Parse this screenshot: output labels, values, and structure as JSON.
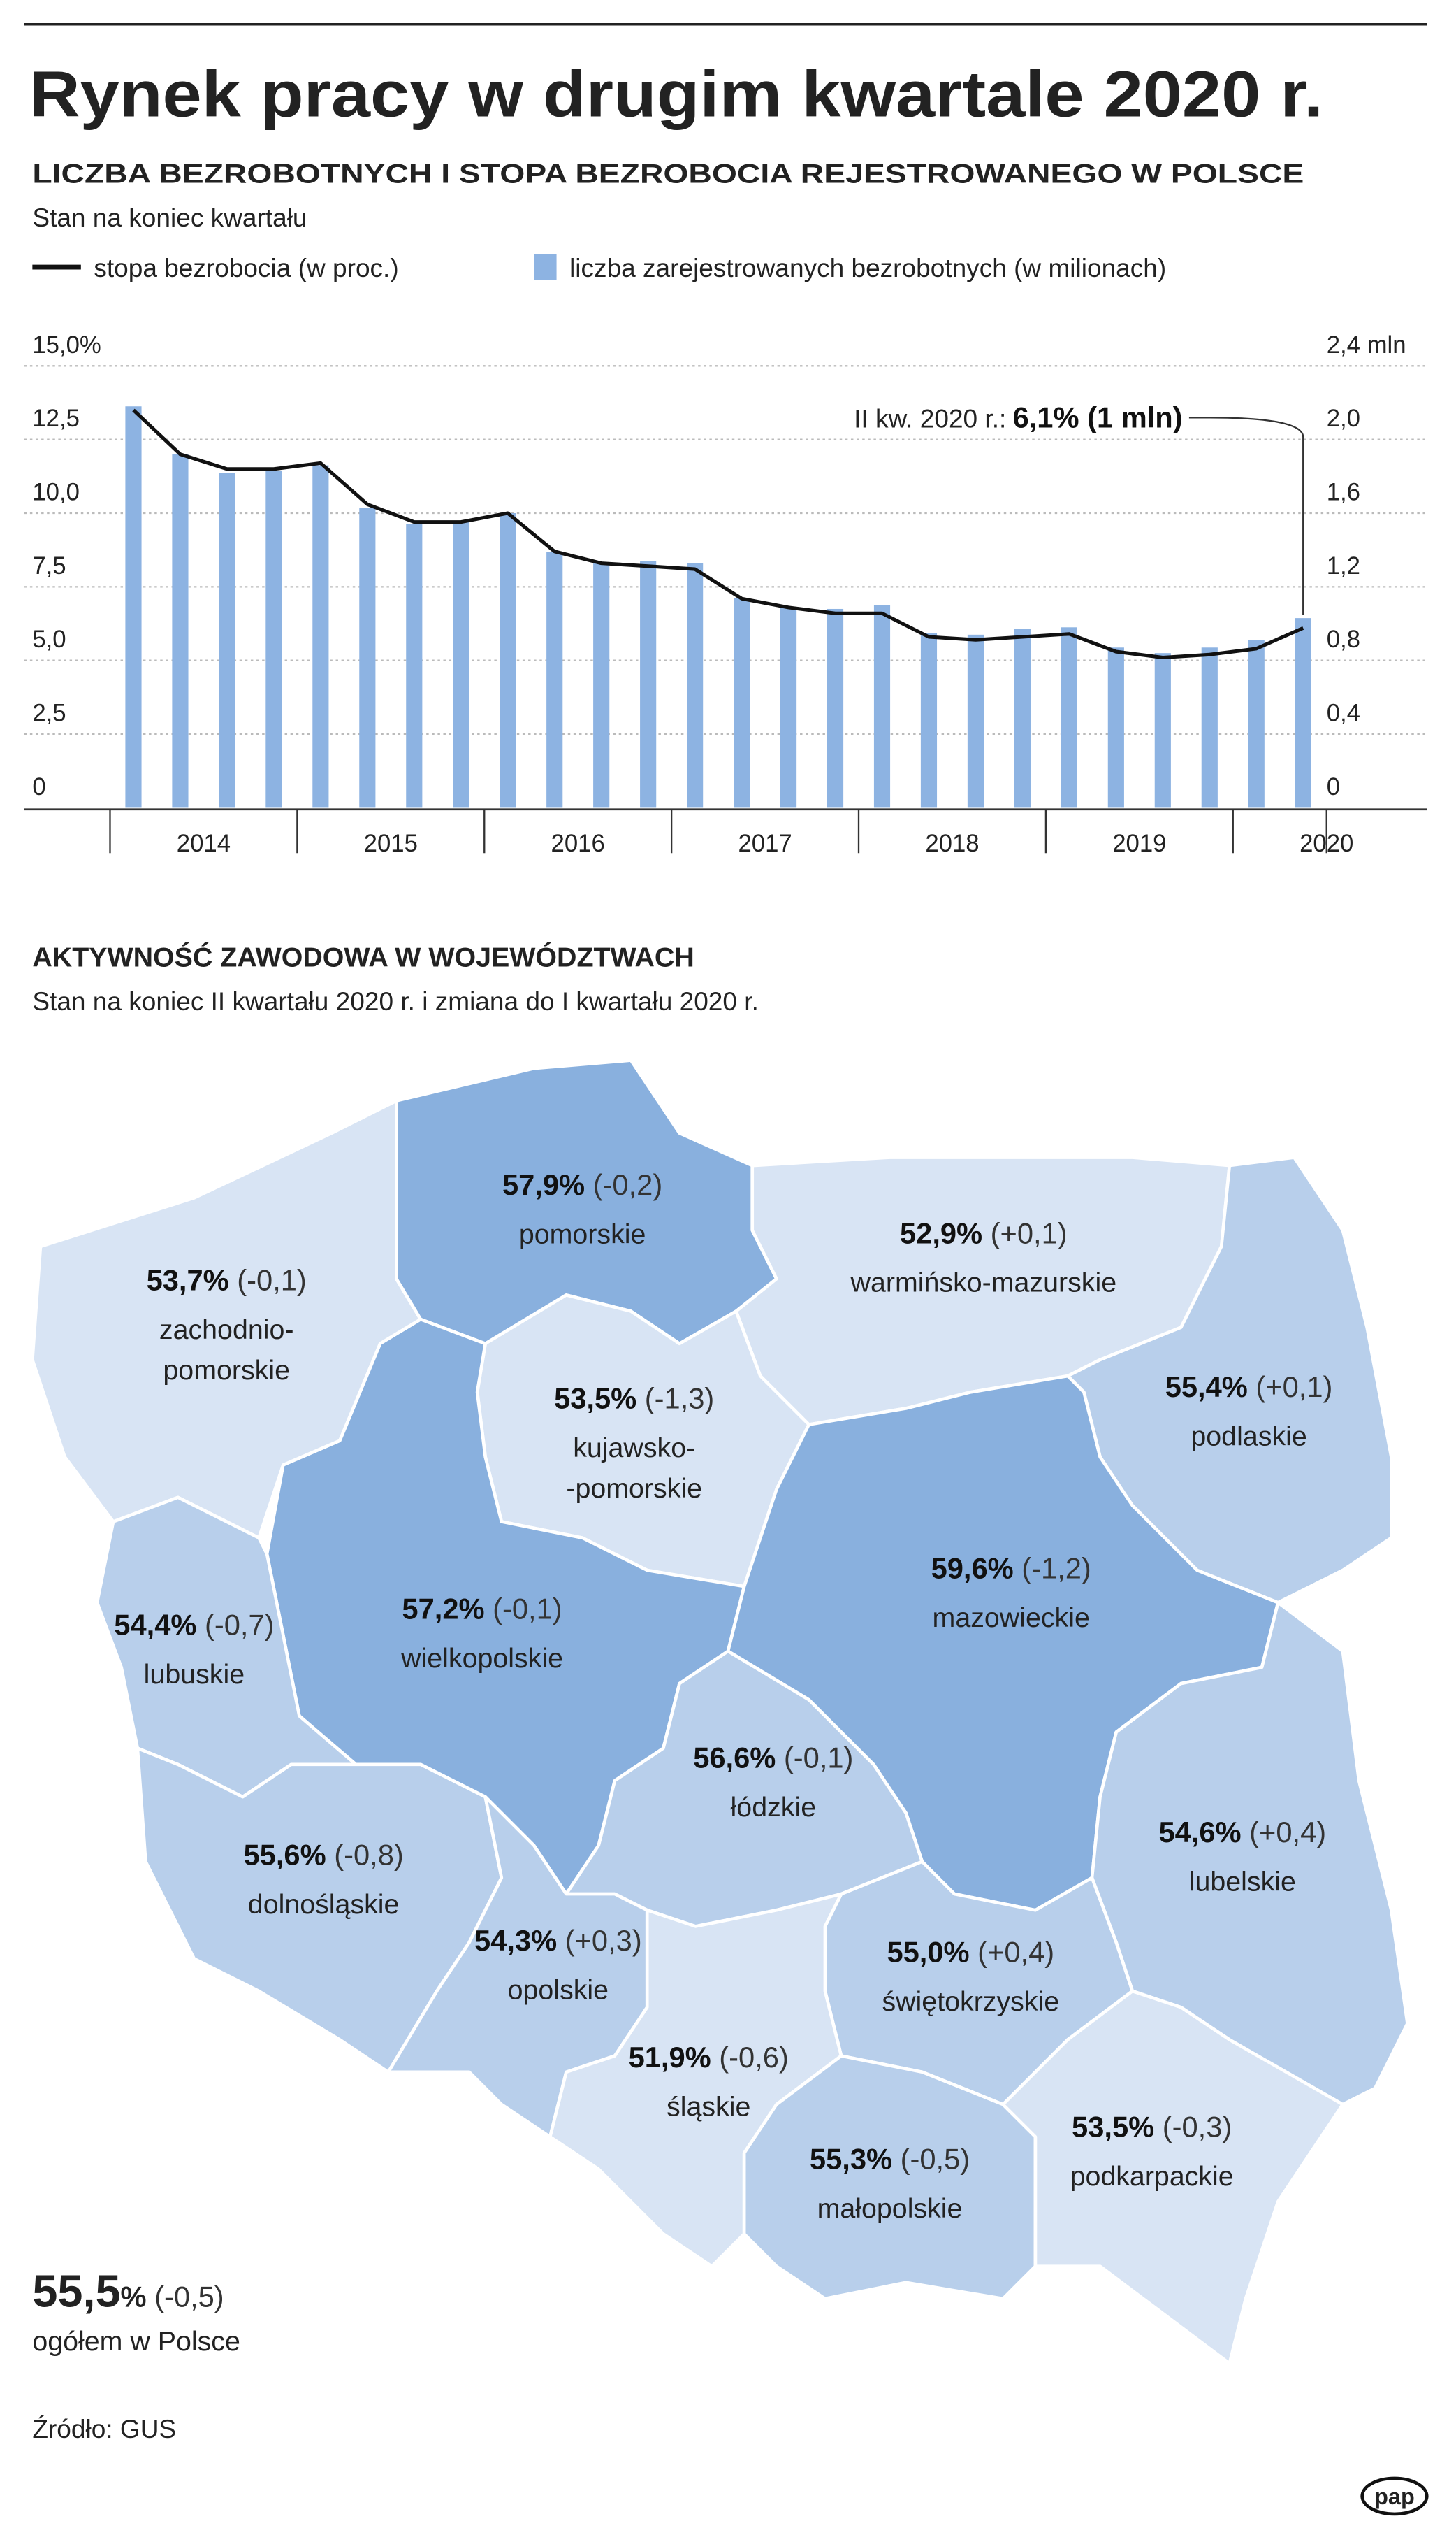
{
  "header": {
    "title": "Rynek pracy w drugim kwartale 2020 r."
  },
  "chart_data": {
    "type": "bar",
    "title": "LICZBA BEZROBOTNYCH I STOPA BEZROBOCIA REJESTROWANEGO W POLSCE",
    "subtitle": "Stan na koniec kwartału",
    "categories": [
      null,
      null,
      null,
      null,
      null,
      null,
      null,
      null,
      null,
      null,
      null,
      null,
      null,
      null,
      null,
      null,
      null,
      null,
      null,
      null,
      null,
      null,
      null,
      null,
      null,
      null
    ],
    "x_groups": [
      "2014",
      "2015",
      "2016",
      "2017",
      "2018",
      "2019",
      "2020"
    ],
    "series": [
      {
        "name": "stopa bezrobocia (w proc.)",
        "type": "line",
        "color": "#111111",
        "values": [
          13.5,
          12.0,
          11.5,
          11.5,
          11.7,
          10.3,
          9.7,
          9.7,
          10.0,
          8.7,
          8.3,
          8.2,
          8.1,
          7.1,
          6.8,
          6.6,
          6.6,
          5.8,
          5.7,
          5.8,
          5.9,
          5.3,
          5.1,
          5.2,
          5.4,
          6.1
        ]
      },
      {
        "name": "liczba zarejestrowanych bezrobotnych (w milionach)",
        "type": "bar",
        "axis": "y2",
        "color": "#8db3e2",
        "values": [
          2.18,
          1.92,
          1.82,
          1.83,
          1.86,
          1.63,
          1.54,
          1.56,
          1.6,
          1.39,
          1.33,
          1.34,
          1.33,
          1.14,
          1.09,
          1.08,
          1.1,
          0.95,
          0.94,
          0.97,
          0.98,
          0.87,
          0.84,
          0.87,
          0.91,
          1.03
        ]
      }
    ],
    "ylim": [
      0,
      15
    ],
    "yticks": [
      0,
      {
        "value": 2.5,
        "label": "2,5"
      },
      {
        "value": 5,
        "label": "5,0"
      },
      {
        "value": 7.5,
        "label": "7,5"
      },
      {
        "value": 10,
        "label": "10,0"
      },
      {
        "value": 12.5,
        "label": "12,5"
      },
      {
        "value": 15,
        "label": "15,0%"
      }
    ],
    "y2lim": [
      0,
      2.4
    ],
    "y2ticks": [
      0,
      {
        "value": 0.4,
        "label": "0,4"
      },
      {
        "value": 0.8,
        "label": "0,8"
      },
      {
        "value": 1.2,
        "label": "1,2"
      },
      {
        "value": 1.6,
        "label": "1,6"
      },
      {
        "value": 2.0,
        "label": "2,0"
      },
      {
        "value": 2.4,
        "label": "2,4 mln"
      }
    ],
    "grid": true,
    "annotation": {
      "label": "II kw. 2020 r.:",
      "value": "6,1% (1 mln)"
    }
  },
  "map": {
    "title": "AKTYWNOŚĆ ZAWODOWA W WOJEWÓDZTWACH",
    "subtitle": "Stan na koniec II kwartału 2020 r. i zmiana do I kwartału 2020 r.",
    "regions": [
      {
        "name": [
          "zachodnio-",
          "pomorskie"
        ],
        "value": "53,7%",
        "change": "(-0,1)",
        "color": "#d8e4f4"
      },
      {
        "name": [
          "pomorskie"
        ],
        "value": "57,9%",
        "change": "(-0,2)",
        "color": "#89b0de"
      },
      {
        "name": [
          "warmińsko-mazurskie"
        ],
        "value": "52,9%",
        "change": "(+0,1)",
        "color": "#d8e4f4"
      },
      {
        "name": [
          "podlaskie"
        ],
        "value": "55,4%",
        "change": "(+0,1)",
        "color": "#b8cfeb"
      },
      {
        "name": [
          "kujawsko-",
          "-pomorskie"
        ],
        "value": "53,5%",
        "change": "(-1,3)",
        "color": "#d8e4f4"
      },
      {
        "name": [
          "wielkopolskie"
        ],
        "value": "57,2%",
        "change": "(-0,1)",
        "color": "#89b0de"
      },
      {
        "name": [
          "lubuskie"
        ],
        "value": "54,4%",
        "change": "(-0,7)",
        "color": "#b8cfeb"
      },
      {
        "name": [
          "mazowieckie"
        ],
        "value": "59,6%",
        "change": "(-1,2)",
        "color": "#89b0de"
      },
      {
        "name": [
          "łódzkie"
        ],
        "value": "56,6%",
        "change": "(-0,1)",
        "color": "#b8cfeb"
      },
      {
        "name": [
          "lubelskie"
        ],
        "value": "54,6%",
        "change": "(+0,4)",
        "color": "#b8cfeb"
      },
      {
        "name": [
          "dolnośląskie"
        ],
        "value": "55,6%",
        "change": "(-0,8)",
        "color": "#b8cfeb"
      },
      {
        "name": [
          "opolskie"
        ],
        "value": "54,3%",
        "change": "(+0,3)",
        "color": "#b8cfeb"
      },
      {
        "name": [
          "świętokrzyskie"
        ],
        "value": "55,0%",
        "change": "(+0,4)",
        "color": "#b8cfeb"
      },
      {
        "name": [
          "śląskie"
        ],
        "value": "51,9%",
        "change": "(-0,6)",
        "color": "#d8e4f4"
      },
      {
        "name": [
          "małopolskie"
        ],
        "value": "55,3%",
        "change": "(-0,5)",
        "color": "#b8cfeb"
      },
      {
        "name": [
          "podkarpackie"
        ],
        "value": "53,5%",
        "change": "(-0,3)",
        "color": "#d8e4f4"
      }
    ],
    "total": {
      "value": "55,5",
      "unit": "%",
      "change": "(-0,5)",
      "label": "ogółem w Polsce"
    }
  },
  "source": "Źródło: GUS",
  "logo": "pap"
}
